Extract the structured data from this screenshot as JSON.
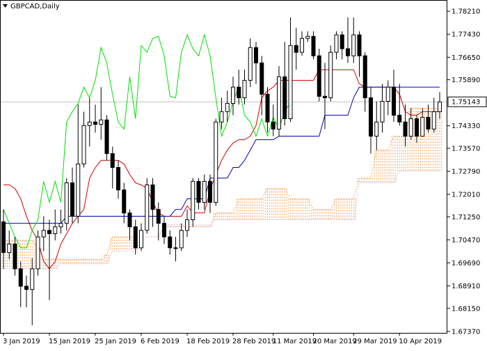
{
  "chart_data": {
    "type": "candlestick",
    "title": "GBPCAD,Daily",
    "categories": [
      "3 Jan 2019",
      null,
      null,
      null,
      null,
      null,
      null,
      null,
      "15 Jan 2019",
      null,
      null,
      null,
      null,
      null,
      null,
      null,
      "25 Jan 2019",
      null,
      null,
      null,
      null,
      null,
      null,
      null,
      "6 Feb 2019",
      null,
      null,
      null,
      null,
      null,
      null,
      null,
      "18 Feb 2019",
      null,
      null,
      null,
      null,
      null,
      null,
      null,
      "28 Feb 2019",
      null,
      null,
      null,
      null,
      null,
      null,
      "11 Mar 2019",
      null,
      null,
      null,
      null,
      null,
      null,
      "20 Mar 2019",
      null,
      null,
      null,
      null,
      null,
      null,
      "29 Mar 2019",
      null,
      null,
      null,
      null,
      null,
      null,
      null,
      "10 Apr 2019",
      null,
      null,
      null,
      null,
      null,
      null,
      null
    ],
    "open": [
      1.7108,
      1.7004,
      1.7033,
      1.6949,
      1.689,
      1.6879,
      1.6949,
      1.7057,
      1.7079,
      1.7068,
      1.7091,
      1.7103,
      1.724,
      1.7127,
      1.7304,
      1.7434,
      1.7446,
      1.7438,
      1.7453,
      1.7339,
      1.7292,
      1.7216,
      1.7138,
      1.7091,
      1.702,
      1.7079,
      1.7233,
      1.715,
      1.7103,
      1.7057,
      1.702,
      1.702,
      1.7079,
      1.7115,
      1.7245,
      1.7174,
      1.7245,
      1.7174,
      1.7446,
      1.7481,
      1.7509,
      1.7564,
      1.7528,
      1.7587,
      1.7698,
      1.7646,
      1.754,
      1.7446,
      1.7422,
      1.7599,
      1.7457,
      1.7705,
      1.7682,
      1.7729,
      1.7736,
      1.767,
      1.7533,
      1.7528,
      1.7682,
      1.7741,
      1.7694,
      1.767,
      1.7741,
      1.767,
      1.7528,
      1.7398,
      1.7446,
      1.7516,
      1.7564,
      1.7469,
      1.7446,
      1.7398,
      1.7457,
      1.7398,
      1.7462,
      1.7422,
      1.7481
    ],
    "high": [
      1.715,
      1.7079,
      1.7057,
      1.6974,
      1.6926,
      1.6985,
      1.7079,
      1.7127,
      1.7115,
      1.715,
      1.715,
      1.7256,
      1.7292,
      1.7505,
      1.7481,
      1.7528,
      1.7505,
      1.7564,
      1.7469,
      1.7363,
      1.7316,
      1.724,
      1.715,
      1.7115,
      1.7103,
      1.7256,
      1.7256,
      1.7174,
      1.7127,
      1.7079,
      1.7057,
      1.7103,
      1.715,
      1.7256,
      1.7256,
      1.7268,
      1.7268,
      1.7457,
      1.7528,
      1.7552,
      1.7599,
      1.7623,
      1.7623,
      1.7729,
      1.7717,
      1.767,
      1.7564,
      1.7505,
      1.7635,
      1.7717,
      1.78,
      1.7765,
      1.7753,
      1.7753,
      1.7753,
      1.7694,
      1.7646,
      1.7705,
      1.7753,
      1.7753,
      1.78,
      1.78,
      1.7753,
      1.7682,
      1.7564,
      1.7516,
      1.7575,
      1.7587,
      1.7623,
      1.7575,
      1.7505,
      1.7493,
      1.7469,
      1.7493,
      1.7505,
      1.7528,
      1.7547
    ],
    "low": [
      1.6949,
      1.6981,
      1.6926,
      1.6819,
      1.6819,
      1.6758,
      1.6926,
      1.7009,
      1.6843,
      1.7045,
      1.7068,
      1.7079,
      1.7103,
      1.7103,
      1.7292,
      1.7363,
      1.741,
      1.7386,
      1.7316,
      1.7221,
      1.7186,
      1.7103,
      1.7045,
      1.6997,
      1.7009,
      1.7068,
      1.7091,
      1.7045,
      1.7033,
      1.6997,
      1.6974,
      1.7009,
      1.7057,
      1.7091,
      1.715,
      1.715,
      1.7138,
      1.7162,
      1.7422,
      1.7446,
      1.7469,
      1.7505,
      1.7505,
      1.7564,
      1.7575,
      1.7469,
      1.741,
      1.7398,
      1.7398,
      1.7434,
      1.7446,
      1.7623,
      1.767,
      1.7717,
      1.7658,
      1.7516,
      1.7422,
      1.7516,
      1.7658,
      1.7658,
      1.7646,
      1.7646,
      1.7599,
      1.7481,
      1.7339,
      1.7351,
      1.741,
      1.7469,
      1.7446,
      1.7434,
      1.7363,
      1.7386,
      1.7375,
      1.7398,
      1.741,
      1.741,
      1.7457
    ],
    "close": [
      1.7004,
      1.7033,
      1.6949,
      1.689,
      1.6879,
      1.6949,
      1.7057,
      1.7079,
      1.7068,
      1.7091,
      1.7103,
      1.724,
      1.7127,
      1.7304,
      1.7434,
      1.7446,
      1.7438,
      1.7453,
      1.7339,
      1.7292,
      1.7216,
      1.7138,
      1.7091,
      1.702,
      1.7079,
      1.7233,
      1.715,
      1.7103,
      1.7057,
      1.702,
      1.702,
      1.7079,
      1.7115,
      1.7245,
      1.7174,
      1.7245,
      1.7174,
      1.7446,
      1.7481,
      1.7509,
      1.7564,
      1.7528,
      1.7587,
      1.7698,
      1.7646,
      1.754,
      1.7446,
      1.7422,
      1.7599,
      1.7457,
      1.7705,
      1.7682,
      1.7729,
      1.7736,
      1.767,
      1.7533,
      1.7528,
      1.7682,
      1.7741,
      1.7694,
      1.767,
      1.7741,
      1.767,
      1.7528,
      1.7398,
      1.7446,
      1.7516,
      1.7564,
      1.7469,
      1.7446,
      1.7398,
      1.7457,
      1.7398,
      1.7462,
      1.7422,
      1.7481,
      1.7514
    ],
    "up_color": "#ffffff",
    "down_color": "#000000",
    "ylim": [
      1.6732,
      1.7859
    ],
    "yticks": [
      {
        "value": 1.7821,
        "label": "1.78210"
      },
      {
        "value": 1.7743,
        "label": "1.77430"
      },
      {
        "value": 1.7665,
        "label": "1.76650"
      },
      {
        "value": 1.7589,
        "label": "1.75890"
      },
      {
        "value": 1.7433,
        "label": "1.74330"
      },
      {
        "value": 1.7357,
        "label": "1.73570"
      },
      {
        "value": 1.7279,
        "label": "1.72790"
      },
      {
        "value": 1.7201,
        "label": "1.72010"
      },
      {
        "value": 1.7125,
        "label": "1.71250"
      },
      {
        "value": 1.7047,
        "label": "1.70470"
      },
      {
        "value": 1.6969,
        "label": "1.69690"
      },
      {
        "value": 1.6891,
        "label": "1.68910"
      },
      {
        "value": 1.6815,
        "label": "1.68150"
      },
      {
        "value": 1.6737,
        "label": "1.67370"
      }
    ],
    "last_price": 1.75143,
    "last_price_color": "#c0c0c0",
    "grid": false,
    "series": [
      {
        "color": "#d40000",
        "values": [
          1.7233,
          1.7233,
          1.7221,
          1.7186,
          1.7127,
          1.7079,
          1.7045,
          1.6974,
          1.6949,
          1.6974,
          1.7033,
          1.7068,
          1.7103,
          1.7127,
          1.715,
          1.7256,
          1.7292,
          1.7316,
          1.7316,
          1.7316,
          1.7316,
          1.7304,
          1.7268,
          1.724,
          1.7233,
          1.7221,
          1.7174,
          1.7138,
          1.7127,
          1.7127,
          1.7127,
          1.7127,
          1.7162,
          1.7138,
          1.7138,
          1.7138,
          1.7216,
          1.7268,
          1.7316,
          1.7351,
          1.7375,
          1.7386,
          1.7386,
          1.7398,
          1.7434,
          1.7528,
          1.7552,
          1.7564,
          1.7587,
          1.7587,
          1.7587,
          1.7587,
          1.7587,
          1.7587,
          1.7587,
          1.7623,
          1.7623,
          1.7623,
          1.7623,
          1.7623,
          1.7623,
          1.7623,
          1.7575,
          1.7564,
          1.7564,
          1.7564,
          1.7564,
          1.7564,
          1.7564,
          1.754,
          1.7481,
          1.7469,
          1.7469,
          1.7481,
          1.7481,
          1.7481,
          1.7481
        ]
      },
      {
        "color": "#0000b4",
        "values": [
          1.7103,
          1.7103,
          1.7103,
          1.7103,
          1.7103,
          1.7103,
          1.7103,
          1.7103,
          1.7103,
          1.7103,
          1.7103,
          1.7127,
          1.7127,
          1.7127,
          1.7127,
          1.7127,
          1.7127,
          1.7127,
          1.7127,
          1.7127,
          1.7127,
          1.7127,
          1.7127,
          1.7127,
          1.7127,
          1.7127,
          1.7127,
          1.7127,
          1.7127,
          1.7127,
          1.715,
          1.715,
          1.7186,
          1.7186,
          1.7186,
          1.7186,
          1.7256,
          1.7256,
          1.7256,
          1.7256,
          1.7292,
          1.7292,
          1.7316,
          1.7351,
          1.7386,
          1.7386,
          1.7386,
          1.7386,
          1.7398,
          1.7398,
          1.7398,
          1.7398,
          1.7398,
          1.7398,
          1.7398,
          1.7398,
          1.7469,
          1.7469,
          1.7469,
          1.7469,
          1.7469,
          1.7528,
          1.7564,
          1.7564,
          1.7564,
          1.7564,
          1.7564,
          1.7564,
          1.7564,
          1.7564,
          1.7564,
          1.7564,
          1.7564,
          1.7564,
          1.7564,
          1.7564,
          1.7564
        ]
      },
      {
        "color": "#00e000",
        "values": [
          1.715,
          1.7103,
          1.7057,
          1.702,
          1.702,
          1.7079,
          1.7115,
          1.7245,
          1.7174,
          1.7245,
          1.7174,
          1.7446,
          1.7481,
          1.7509,
          1.7564,
          1.7528,
          1.7587,
          1.7698,
          1.7646,
          1.754,
          1.7446,
          1.7422,
          1.7599,
          1.7457,
          1.7705,
          1.7682,
          1.7729,
          1.7736,
          1.767,
          1.7533,
          1.7528,
          1.7682,
          1.7741,
          1.7694,
          1.767,
          1.7741,
          1.767,
          1.7528,
          1.7398,
          1.7446,
          1.7516,
          1.7564,
          1.7469,
          1.7446,
          1.7398,
          1.7457,
          1.7398,
          1.7462,
          1.7422,
          1.7481,
          1.7514,
          null,
          null,
          null,
          null,
          null,
          null,
          null,
          null,
          null,
          null,
          null,
          null,
          null,
          null,
          null,
          null,
          null,
          null,
          null,
          null,
          null,
          null,
          null,
          null,
          null,
          null
        ]
      }
    ],
    "cloud": {
      "up_color": "#f4a460",
      "down_color": "#d8bfd8",
      "span_a": [
        1.7045,
        1.7045,
        1.7045,
        1.7045,
        1.7045,
        1.7045,
        1.702,
        1.6981,
        1.6981,
        1.6981,
        1.6981,
        1.6981,
        1.6981,
        1.6981,
        1.6981,
        1.6981,
        1.6981,
        1.6981,
        1.6997,
        1.7057,
        1.7057,
        1.7057,
        1.7057,
        1.7057,
        1.7057,
        1.7057,
        1.7057,
        1.7057,
        1.7091,
        1.7091,
        1.7091,
        1.7091,
        1.7091,
        1.7091,
        1.7091,
        1.7091,
        1.7091,
        1.7138,
        1.7138,
        1.7138,
        1.7138,
        1.7186,
        1.7186,
        1.7186,
        1.7186,
        1.7186,
        1.7221,
        1.7221,
        1.7221,
        1.7221,
        1.7186,
        1.7186,
        1.7186,
        1.7186,
        1.715,
        1.715,
        1.715,
        1.715,
        1.7186,
        1.7186,
        1.7186,
        1.7186,
        1.7256,
        1.7256,
        1.7256,
        1.7351,
        1.7351,
        1.7351,
        1.7398,
        1.7398,
        1.7398,
        1.7493,
        1.7493,
        1.7493,
        1.7493,
        1.7493,
        1.7493
      ],
      "span_b": [
        1.6949,
        1.6949,
        1.6949,
        1.6949,
        1.6949,
        1.6949,
        1.6949,
        1.6949,
        1.6949,
        1.6949,
        1.6966,
        1.6966,
        1.6966,
        1.6966,
        1.6966,
        1.6966,
        1.6966,
        1.6966,
        1.6966,
        1.7009,
        1.7009,
        1.7009,
        1.7009,
        1.7009,
        1.7057,
        1.7057,
        1.7057,
        1.7057,
        1.7098,
        1.7098,
        1.7098,
        1.7098,
        1.7098,
        1.7098,
        1.7098,
        1.7098,
        1.7098,
        1.7115,
        1.7115,
        1.7115,
        1.7115,
        1.7115,
        1.7115,
        1.7115,
        1.7115,
        1.7115,
        1.7115,
        1.7115,
        1.7115,
        1.7115,
        1.7115,
        1.7115,
        1.7115,
        1.7115,
        1.7115,
        1.7115,
        1.7115,
        1.7115,
        1.7115,
        1.7115,
        1.7115,
        1.7115,
        1.724,
        1.724,
        1.724,
        1.724,
        1.724,
        1.724,
        1.724,
        1.728,
        1.728,
        1.728,
        1.728,
        1.728,
        1.728,
        1.728,
        1.728
      ]
    }
  }
}
